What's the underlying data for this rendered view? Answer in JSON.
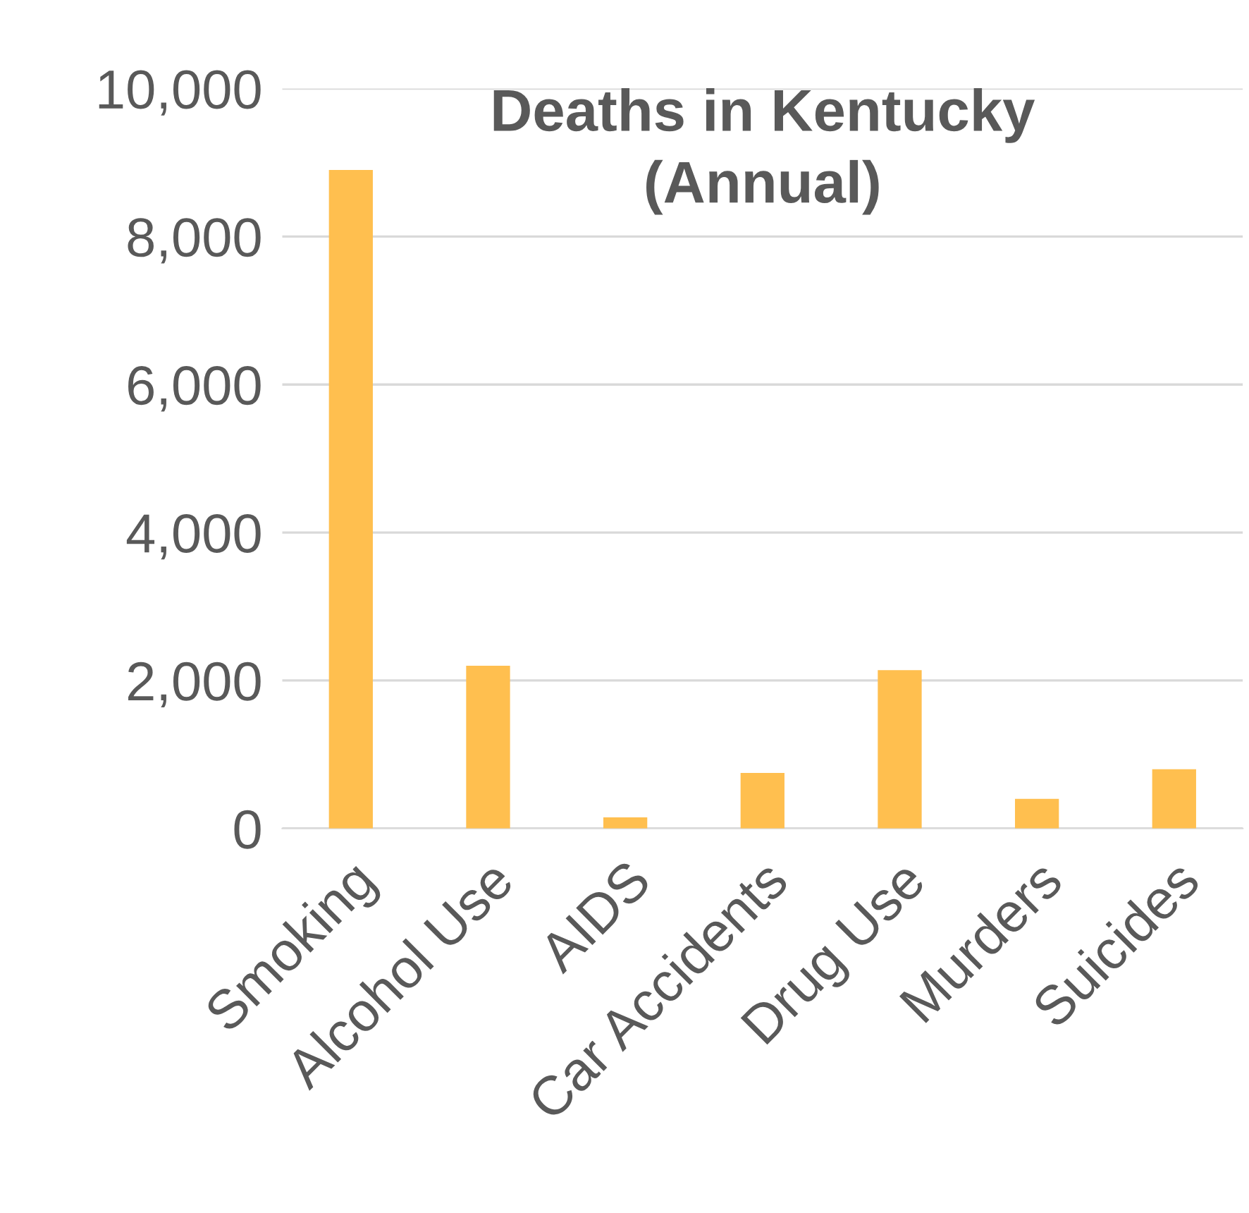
{
  "chart_data": {
    "type": "bar",
    "title": "Deaths in Kentucky\n(Annual)",
    "categories": [
      "Smoking",
      "Alcohol Use",
      "AIDS",
      "Car Accidents",
      "Drug Use",
      "Murders",
      "Suicides"
    ],
    "values": [
      8900,
      2200,
      150,
      750,
      2140,
      400,
      800
    ],
    "color": "#ffbf4f",
    "ylim": [
      0,
      10000
    ],
    "yticks": [
      {
        "value": 0,
        "label": "0"
      },
      {
        "value": 2000,
        "label": "2,000"
      },
      {
        "value": 4000,
        "label": "4,000"
      },
      {
        "value": 6000,
        "label": "6,000"
      },
      {
        "value": 8000,
        "label": "8,000"
      },
      {
        "value": 10000,
        "label": "10,000"
      }
    ],
    "grid": "y"
  }
}
